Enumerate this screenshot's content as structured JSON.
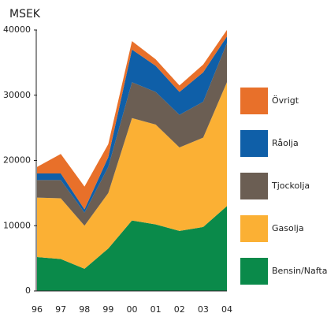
{
  "chart_data": {
    "type": "stacked_area",
    "y_label": "MSEK",
    "categories": [
      "96",
      "97",
      "98",
      "99",
      "00",
      "01",
      "02",
      "03",
      "04"
    ],
    "series": [
      {
        "name": "Bensin/Nafta",
        "color": "#0a8a4a",
        "values": [
          5200,
          4900,
          3400,
          6500,
          10800,
          10200,
          9200,
          9800,
          13000
        ]
      },
      {
        "name": "Gasolja",
        "color": "#fbb034",
        "values": [
          9100,
          9300,
          6600,
          8500,
          15700,
          15300,
          12800,
          13700,
          19000
        ]
      },
      {
        "name": "Tjockolja",
        "color": "#6b5e53",
        "values": [
          2700,
          2800,
          2000,
          4000,
          5500,
          5000,
          5000,
          5500,
          6000
        ]
      },
      {
        "name": "Råolja",
        "color": "#0f5fa8",
        "values": [
          1000,
          1000,
          500,
          1500,
          5000,
          4000,
          3500,
          4500,
          1000
        ]
      },
      {
        "name": "Övrigt",
        "color": "#e8702a",
        "values": [
          1000,
          3000,
          3500,
          2000,
          1300,
          1000,
          1000,
          1200,
          1000
        ]
      }
    ],
    "ylim": [
      0,
      40000
    ],
    "yticks": [
      0,
      10000,
      20000,
      30000,
      40000
    ]
  }
}
